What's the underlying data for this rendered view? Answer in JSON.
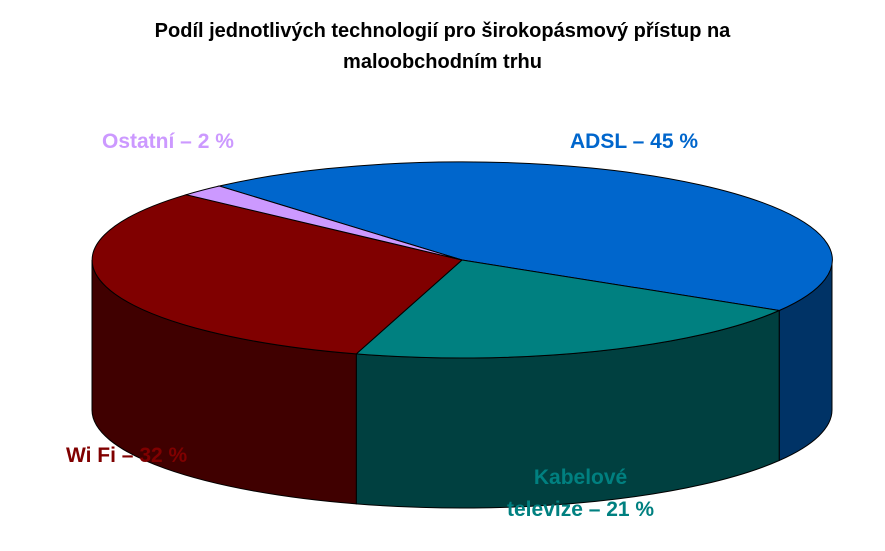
{
  "chart_data": {
    "type": "pie",
    "title_lines": [
      "Podíl jednotlivých technologií pro širokopásmový přístup na",
      "maloobchodním trhu"
    ],
    "slices": [
      {
        "name": "ADSL",
        "value": 45,
        "label_lines": [
          "ADSL – 45 %"
        ],
        "color": "#0066CC",
        "side_color": "#003366"
      },
      {
        "name": "Kabelové televize",
        "value": 21,
        "label_lines": [
          "Kabelové",
          "televize – 21 %"
        ],
        "color": "#008080",
        "side_color": "#004040"
      },
      {
        "name": "Wi Fi",
        "value": 32,
        "label_lines": [
          "Wi Fi – 32 %"
        ],
        "color": "#800000",
        "side_color": "#400000"
      },
      {
        "name": "Ostatní",
        "value": 2,
        "label_lines": [
          "Ostatní – 2 %"
        ],
        "color": "#CC99FF",
        "side_color": "#9966CC"
      }
    ],
    "label_colors": [
      "#0066CC",
      "#008080",
      "#800000",
      "#CC99FF"
    ]
  }
}
